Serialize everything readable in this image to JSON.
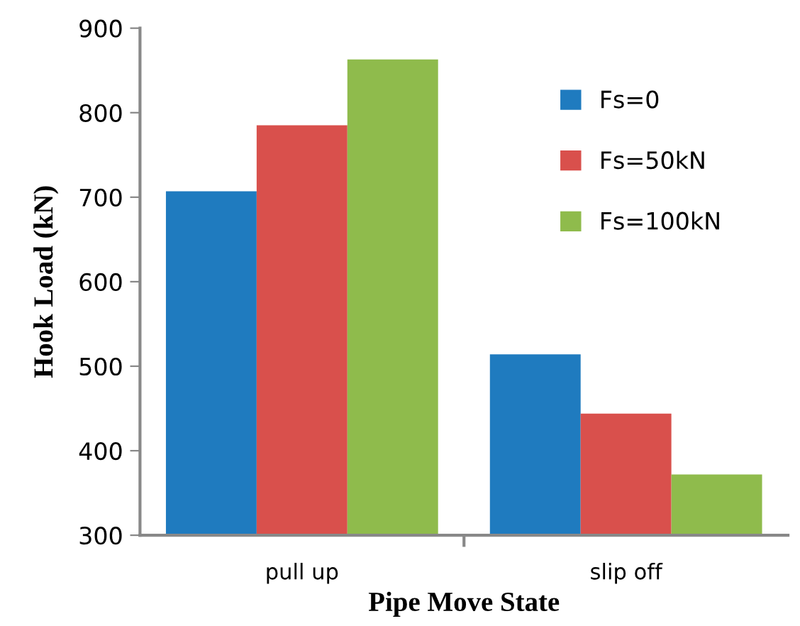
{
  "chart_data": {
    "type": "bar",
    "xlabel": "Pipe Move State",
    "ylabel": "Hook Load (kN)",
    "categories": [
      "pull up",
      "slip off"
    ],
    "series": [
      {
        "name": "Fs=0",
        "color": "#1f7bbf",
        "values": [
          707,
          514
        ]
      },
      {
        "name": "Fs=50kN",
        "color": "#d9504c",
        "values": [
          785,
          444
        ]
      },
      {
        "name": "Fs=100kN",
        "color": "#8fbb4c",
        "values": [
          863,
          372
        ]
      }
    ],
    "ylim": [
      300,
      900
    ],
    "yticks": [
      300,
      400,
      500,
      600,
      700,
      800,
      900
    ],
    "grid": false,
    "legend": "top right"
  }
}
